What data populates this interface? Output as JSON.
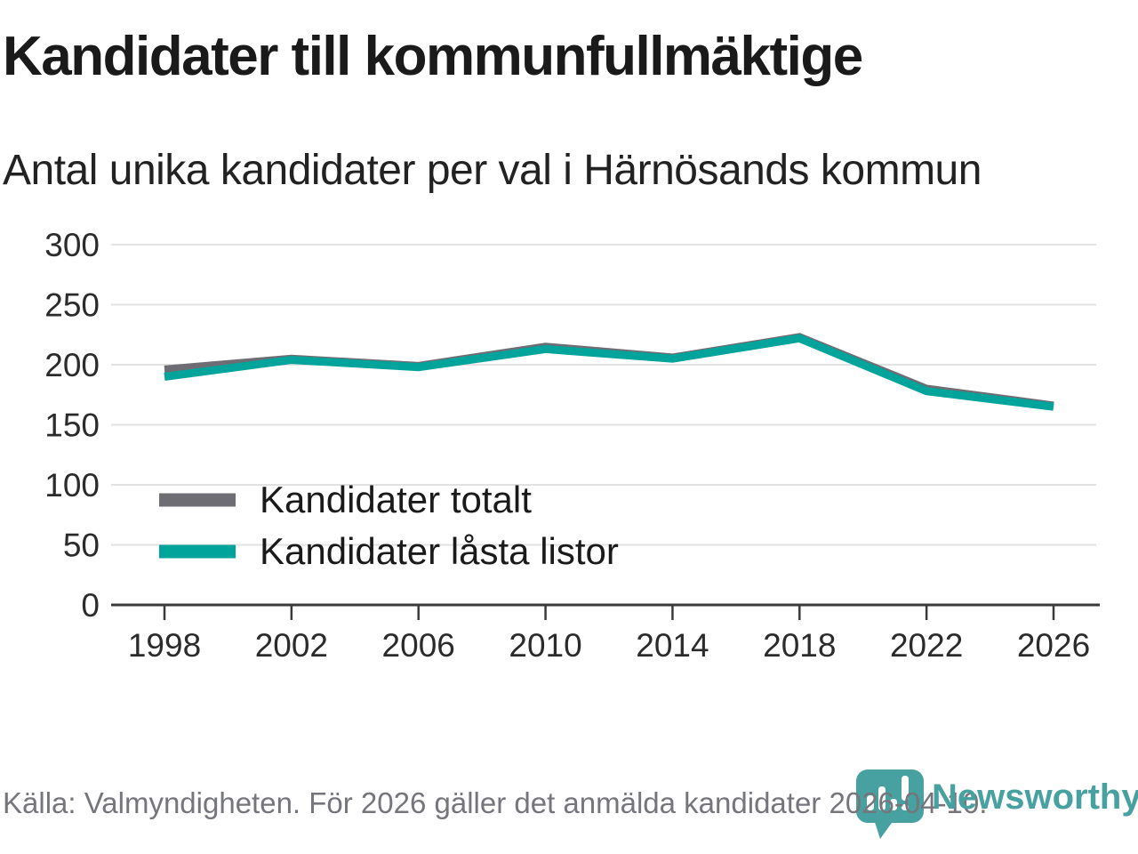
{
  "header": {
    "title": "Kandidater till kommunfullmäktige",
    "subtitle": "Antal unika kandidater per val i Härnösands kommun"
  },
  "chart_data": {
    "type": "line",
    "categories": [
      "1998",
      "2002",
      "2006",
      "2010",
      "2014",
      "2018",
      "2022",
      "2026"
    ],
    "series": [
      {
        "name": "Kandidater totalt",
        "color": "#6d6d73",
        "values": [
          196,
          205,
          199,
          215,
          206,
          223,
          180,
          166
        ]
      },
      {
        "name": "Kandidater låsta listor",
        "color": "#00a49b",
        "values": [
          190,
          204,
          198,
          213,
          205,
          222,
          178,
          165
        ]
      }
    ],
    "ylim": [
      0,
      300
    ],
    "yticks": [
      0,
      50,
      100,
      150,
      200,
      250,
      300
    ],
    "grid": true,
    "legend_position": "inside-left-bottom"
  },
  "footer": {
    "source": "Källa: Valmyndigheten. För 2026 gäller det anmälda kandidater 2026-04-10.",
    "brand": "Newsworthy"
  },
  "colors": {
    "accent_teal": "#00a49b",
    "series_gray": "#6d6d73",
    "grid": "#e2e2e2",
    "axis": "#3a3a3a",
    "tick_text": "#2b2b2b",
    "title_text": "#1a1a1a",
    "muted_text": "#75757c",
    "brand_teal": "#47a1a0"
  },
  "icons": {
    "logo_icon": "newsworthy-pin-barchart-icon"
  }
}
